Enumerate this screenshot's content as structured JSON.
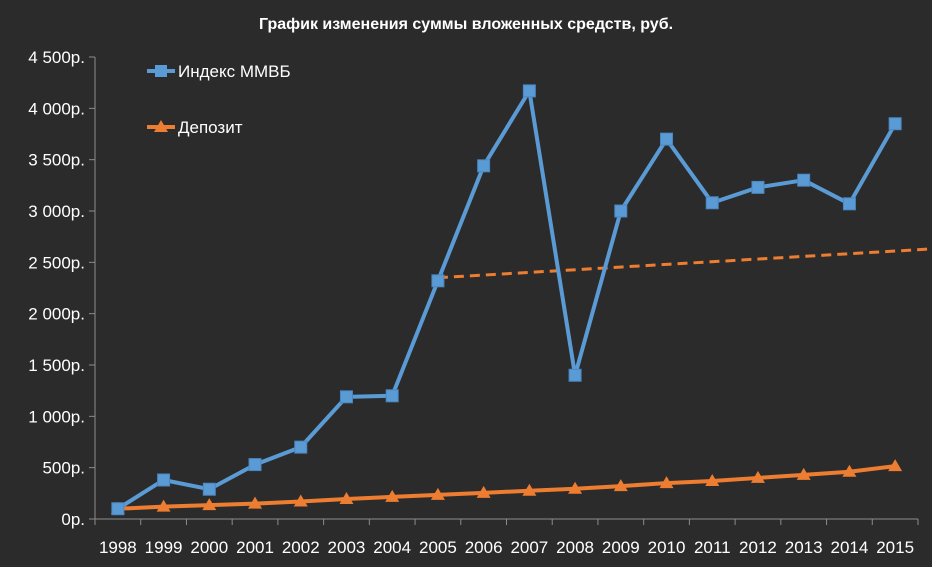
{
  "chart_data": {
    "type": "line",
    "title": "График изменения суммы вложенных средств, руб.",
    "xlabel": "",
    "ylabel": "",
    "categories": [
      "1998",
      "1999",
      "2000",
      "2001",
      "2002",
      "2003",
      "2004",
      "2005",
      "2006",
      "2007",
      "2008",
      "2009",
      "2010",
      "2011",
      "2012",
      "2013",
      "2014",
      "2015"
    ],
    "ylim": [
      0,
      4500
    ],
    "yticks": [
      0,
      500,
      1000,
      1500,
      2000,
      2500,
      3000,
      3500,
      4000,
      4500
    ],
    "ytick_labels": [
      "0р.",
      "500р.",
      "1 000р.",
      "1 500р.",
      "2 000р.",
      "2 500р.",
      "3 000р.",
      "3 500р.",
      "4 000р.",
      "4 500р."
    ],
    "grid": false,
    "legend_position": "top-left",
    "series": [
      {
        "name": "Индекс ММВБ",
        "color": "#5b9bd5",
        "marker": "square",
        "values": [
          100,
          380,
          290,
          530,
          700,
          1190,
          1200,
          2320,
          3440,
          4170,
          1400,
          3000,
          3700,
          3080,
          3230,
          3300,
          3070,
          3850
        ]
      },
      {
        "name": "Депозит",
        "color": "#ed7d31",
        "marker": "triangle",
        "values": [
          100,
          120,
          135,
          150,
          170,
          195,
          215,
          235,
          255,
          275,
          295,
          320,
          350,
          370,
          400,
          430,
          460,
          515
        ]
      }
    ],
    "trendline": {
      "color": "#ed7d31",
      "style": "dashed",
      "from": {
        "x": "2005",
        "y": 2350
      },
      "to": {
        "x": "2015",
        "y": 2610
      }
    }
  }
}
